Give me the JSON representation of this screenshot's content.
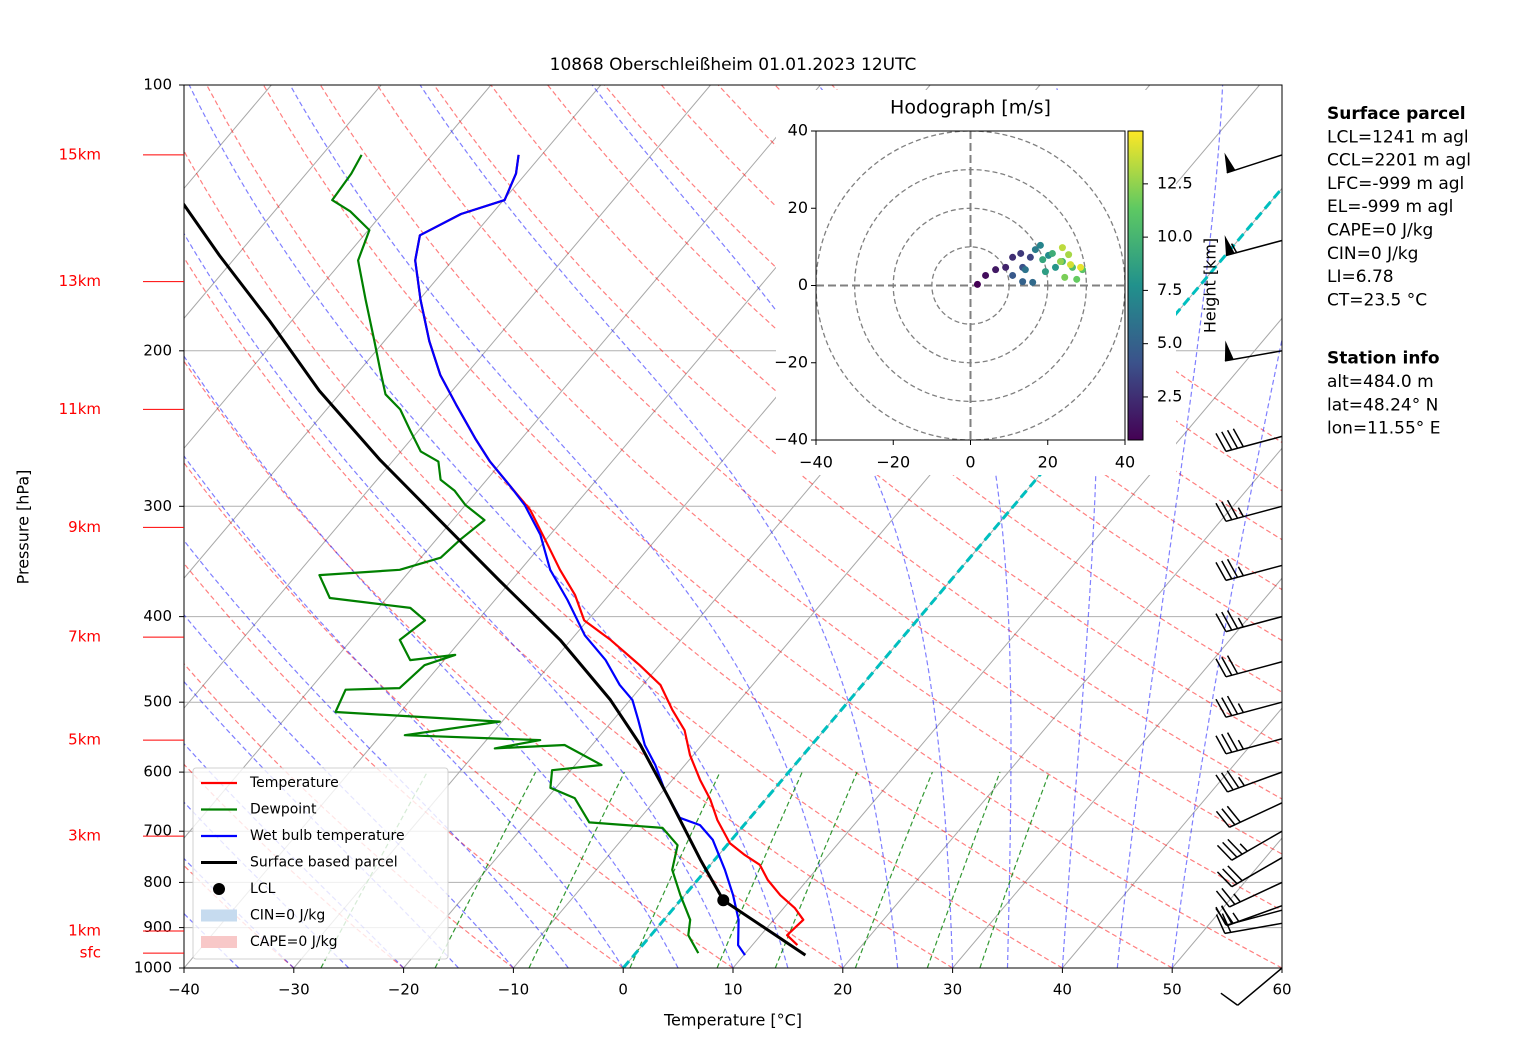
{
  "chart_data": {
    "type": "skewt",
    "title": "10868 Oberschleißheim 01.01.2023 12UTC",
    "x_label": "Temperature [°C]",
    "y_label": "Pressure [hPa]",
    "xlim": [
      -40,
      60
    ],
    "xticks": [
      {
        "value": -40,
        "label": "−40"
      },
      {
        "value": -30,
        "label": "−30"
      },
      {
        "value": -20,
        "label": "−20"
      },
      {
        "value": -10,
        "label": "−10"
      },
      0,
      10,
      20,
      30,
      40,
      50,
      60
    ],
    "ylim": [
      1000,
      100
    ],
    "yticks": [
      100,
      200,
      300,
      400,
      500,
      600,
      700,
      800,
      900,
      1000
    ],
    "log_scale": "y",
    "grid": true,
    "legend": "lower left",
    "series": [
      {
        "name": "Temperature",
        "color": "#ff0000",
        "pressure": [
          942,
          918,
          882,
          855,
          827,
          795,
          764,
          745,
          722,
          680,
          645,
          612,
          574,
          538,
          510,
          478,
          454,
          425,
          404,
          378,
          354,
          332,
          303,
          285,
          267,
          252,
          230,
          213,
          195,
          175,
          158,
          148,
          140,
          135,
          126,
          120
        ],
        "temperature": [
          14.1,
          12.4,
          12.7,
          11.0,
          8.7,
          6.4,
          4.5,
          2.4,
          0.1,
          -2.8,
          -5.0,
          -7.5,
          -10.3,
          -12.7,
          -15.4,
          -18.4,
          -21.8,
          -26.4,
          -30.3,
          -33.1,
          -36.4,
          -39.4,
          -43.7,
          -47.3,
          -51.1,
          -54.1,
          -58.6,
          -62.3,
          -65.9,
          -69.9,
          -73.4,
          -74.9,
          -72.8,
          -69.9,
          -70.9,
          -72.1
        ]
      },
      {
        "name": "Dewpoint",
        "color": "#008000",
        "pressure": [
          962,
          918,
          882,
          827,
          774,
          726,
          694,
          684,
          642,
          625,
          597,
          589,
          559,
          564,
          552,
          545,
          526,
          513,
          484,
          482,
          454,
          442,
          448,
          425,
          404,
          391,
          381,
          359,
          354,
          343,
          327,
          311,
          299,
          288,
          280,
          267,
          260,
          246,
          233,
          224,
          210,
          195,
          175,
          158,
          146,
          139,
          135,
          126,
          120
        ],
        "temperature": [
          5.7,
          3.4,
          2.4,
          -0.4,
          -3.1,
          -4.5,
          -7.2,
          -14.3,
          -17.5,
          -20.5,
          -21.7,
          -17.6,
          -22.5,
          -28.6,
          -25.1,
          -37.8,
          -30.2,
          -45.9,
          -46.7,
          -41.9,
          -41.4,
          -39.4,
          -43.1,
          -45.6,
          -44.8,
          -47.1,
          -55.2,
          -57.9,
          -51.0,
          -48.2,
          -47.8,
          -47.1,
          -50.0,
          -52.1,
          -54.2,
          -55.8,
          -58.2,
          -60.8,
          -63.3,
          -65.8,
          -68.2,
          -70.9,
          -74.9,
          -78.6,
          -79.9,
          -83.1,
          -85.6,
          -85.9,
          -86.4
        ]
      },
      {
        "name": "Wet bulb temperature",
        "color": "#0000ff",
        "pressure": [
          967,
          942,
          882,
          827,
          774,
          716,
          689,
          676,
          629,
          589,
          559,
          524,
          497,
          478,
          448,
          420,
          383,
          354,
          323,
          299,
          285,
          267,
          252,
          230,
          213,
          195,
          175,
          158,
          148,
          140,
          135,
          126,
          120
        ],
        "temperature": [
          10.1,
          8.7,
          6.8,
          4.4,
          1.7,
          -1.7,
          -4.0,
          -6.4,
          -9.9,
          -12.7,
          -15.2,
          -17.7,
          -19.8,
          -22.1,
          -25.3,
          -29.1,
          -33.4,
          -37.3,
          -40.9,
          -44.6,
          -47.3,
          -51.1,
          -54.1,
          -58.6,
          -62.3,
          -65.9,
          -69.9,
          -73.4,
          -74.9,
          -72.8,
          -69.9,
          -70.9,
          -72.1
        ]
      },
      {
        "name": "Surface based parcel",
        "color": "#000000",
        "pressure": [
          967,
          838,
          754,
          645,
          559,
          497,
          425,
          364,
          311,
          266,
          222,
          185,
          156,
          136
        ],
        "temperature": [
          15.6,
          3.9,
          -1.3,
          -8.7,
          -15.6,
          -21.8,
          -31.0,
          -41.1,
          -51.2,
          -61.2,
          -72.1,
          -82.0,
          -91.6,
          -99.0
        ]
      }
    ],
    "lcl": {
      "name": "LCL",
      "color": "#000000",
      "pressure": 838,
      "temperature": 3.9
    },
    "shading": [
      {
        "name": "CIN=0 J/kg",
        "color": "#c6dbef"
      },
      {
        "name": "CAPE=0 J/kg",
        "color": "#f8c8c8"
      }
    ],
    "height_labels": [
      {
        "label": "15km",
        "pressure": 120
      },
      {
        "label": "13km",
        "pressure": 167
      },
      {
        "label": "11km",
        "pressure": 233
      },
      {
        "label": "9km",
        "pressure": 317
      },
      {
        "label": "7km",
        "pressure": 422
      },
      {
        "label": "5km",
        "pressure": 552
      },
      {
        "label": "3km",
        "pressure": 709
      },
      {
        "label": "1km",
        "pressure": 908
      },
      {
        "label": "sfc",
        "pressure": 962
      }
    ],
    "height_label_color": "#ff0000",
    "wind_barbs": {
      "pressure": [
        120,
        150,
        200,
        250,
        300,
        350,
        400,
        450,
        500,
        550,
        600,
        650,
        700,
        750,
        800,
        850,
        860,
        890,
        1000
      ],
      "speed": [
        50,
        55,
        50,
        40,
        35,
        35,
        35,
        30,
        35,
        35,
        35,
        30,
        35,
        30,
        25,
        25,
        20,
        20,
        10
      ],
      "direction": [
        252,
        255,
        260,
        255,
        255,
        255,
        255,
        255,
        255,
        255,
        250,
        245,
        240,
        240,
        245,
        250,
        255,
        260,
        230
      ]
    },
    "hodograph": {
      "title": "Hodograph [m/s]",
      "xlim": [
        -40,
        40
      ],
      "ylim": [
        -40,
        40
      ],
      "xticks": [
        {
          "value": -40,
          "label": "−40"
        },
        {
          "value": -20,
          "label": "−20"
        },
        0,
        20,
        40
      ],
      "yticks": [
        {
          "value": -40,
          "label": "−40"
        },
        {
          "value": -20,
          "label": "−20"
        },
        0,
        20,
        40
      ],
      "u": [
        1.8,
        3.9,
        6.5,
        9.1,
        10.9,
        13.0,
        15.5,
        13.5,
        10.9,
        13.5,
        16.1,
        14.2,
        16.8,
        18.1,
        20.2,
        22.0,
        19.4,
        18.7,
        21.2,
        23.8,
        26.4,
        29.0,
        27.5,
        24.4,
        23.3,
        25.4,
        23.8,
        25.9,
        28.5
      ],
      "v": [
        0.3,
        2.6,
        4.1,
        4.7,
        7.3,
        8.3,
        7.3,
        4.7,
        2.6,
        1.0,
        0.8,
        4.1,
        9.3,
        10.4,
        7.8,
        4.7,
        3.6,
        6.7,
        8.3,
        6.2,
        4.7,
        4.1,
        1.6,
        2.1,
        6.2,
        8.0,
        9.8,
        5.4,
        4.7
      ],
      "height": [
        0.5,
        1,
        1.5,
        2,
        2.5,
        3,
        3.5,
        4,
        4.5,
        5,
        5.5,
        6,
        6.5,
        7,
        7.5,
        8,
        8.5,
        9,
        9.5,
        10,
        10.5,
        11,
        11.5,
        12,
        12.5,
        13,
        13.5,
        14,
        14.5
      ],
      "colorbar": {
        "label": "Height [km]",
        "clim": [
          0.48,
          14.98
        ],
        "ticks": [
          2.5,
          {
            "value": 5,
            "label": "5.0"
          },
          7.5,
          {
            "value": 10,
            "label": "10.0"
          },
          12.5
        ]
      }
    },
    "info_panels": [
      {
        "title": "Surface parcel",
        "lines": [
          "LCL=1241 m agl",
          "CCL=2201 m agl",
          "LFC=-999 m agl",
          "EL=-999 m agl",
          "CAPE=0 J/kg",
          "CIN=0 J/kg",
          "LI=6.78",
          "CT=23.5 °C"
        ]
      },
      {
        "title": "Station info",
        "lines": [
          "alt=484.0 m",
          "lat=48.24° N",
          "lon=11.55° E"
        ]
      }
    ]
  }
}
